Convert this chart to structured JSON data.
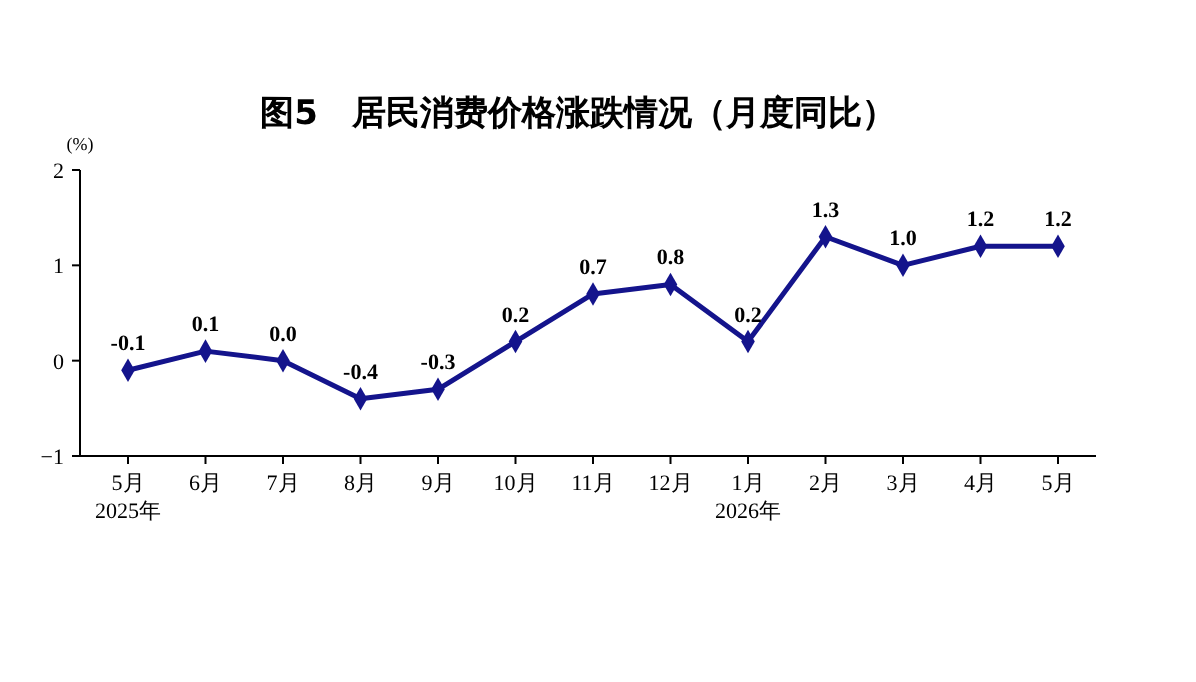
{
  "chart_data": {
    "type": "line",
    "title": "图5　居民消费价格涨跌情况（月度同比）",
    "ylabel": "(%)",
    "categories": [
      "5月\n2025年",
      "6月",
      "7月",
      "8月",
      "9月",
      "10月",
      "11月",
      "12月",
      "1月\n2026年",
      "2月",
      "3月",
      "4月",
      "5月"
    ],
    "series": [
      {
        "color": "#14148c",
        "values": [
          -0.1,
          0.1,
          0.0,
          -0.4,
          -0.3,
          0.2,
          0.7,
          0.8,
          0.2,
          1.3,
          1.0,
          1.2,
          1.2
        ],
        "value_labels": [
          "-0.1",
          "0.1",
          "0.0",
          "-0.4",
          "-0.3",
          "0.2",
          "0.7",
          "0.8",
          "0.2",
          "1.3",
          "1.0",
          "1.2",
          "1.2"
        ]
      }
    ],
    "ylim": [
      -1,
      2
    ],
    "yticks": [
      -1,
      0,
      1,
      2
    ],
    "marker": "diamond",
    "line_style": "solid"
  }
}
